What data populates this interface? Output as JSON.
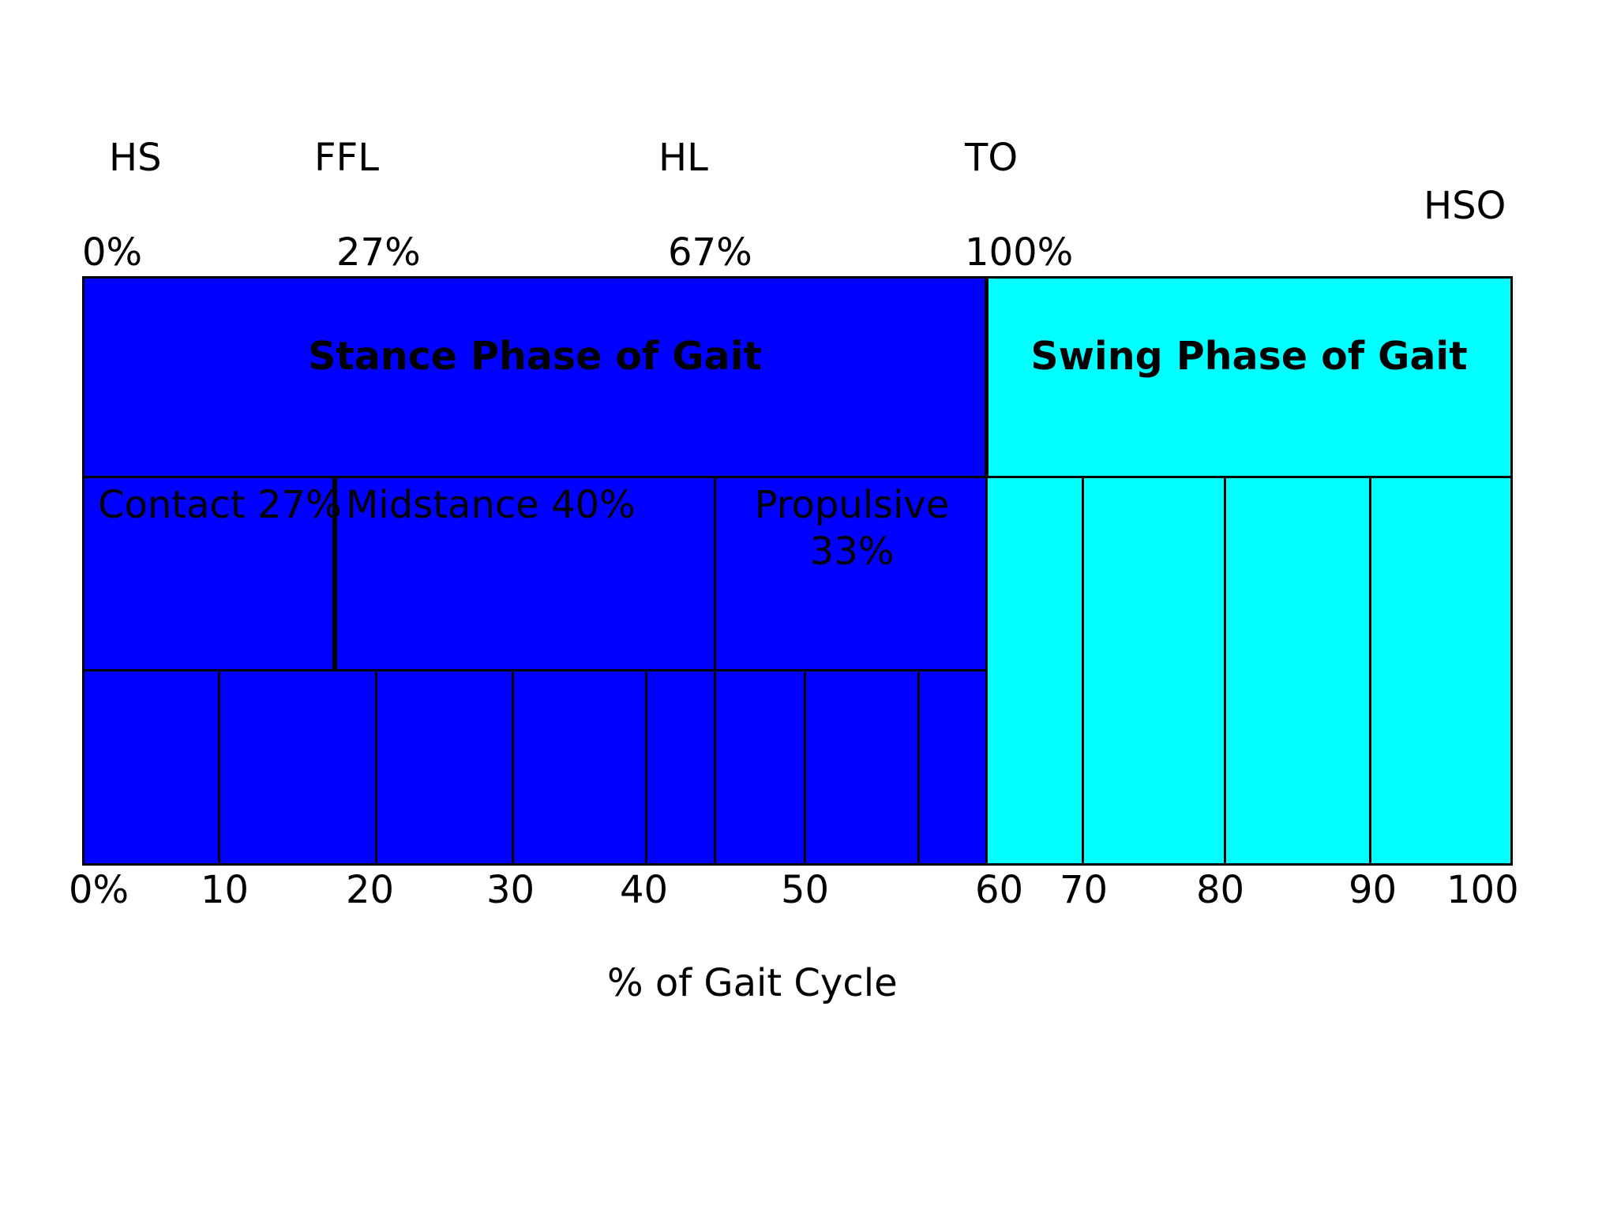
{
  "events": {
    "hs": "HS",
    "ffl": "FFL",
    "hl": "HL",
    "to": "TO",
    "hso": "HSO"
  },
  "stance_percent_markers": {
    "p0": "0%",
    "p27": "27%",
    "p67": "67%",
    "p100": "100%"
  },
  "phases": {
    "stance": "Stance Phase of Gait",
    "swing": "Swing Phase of Gait"
  },
  "stance_subphases": {
    "contact": "Contact 27%",
    "midstance": "Midstance 40%",
    "propulsive_line1": "Propulsive",
    "propulsive_line2": "33%"
  },
  "x_axis": {
    "ticks": [
      "0%",
      "10",
      "20",
      "30",
      "40",
      "50",
      "60",
      "70",
      "80",
      "90",
      "100"
    ],
    "label": "% of Gait Cycle"
  },
  "colors": {
    "stance": "#0000ff",
    "swing": "#00ffff",
    "outline": "#000000"
  }
}
